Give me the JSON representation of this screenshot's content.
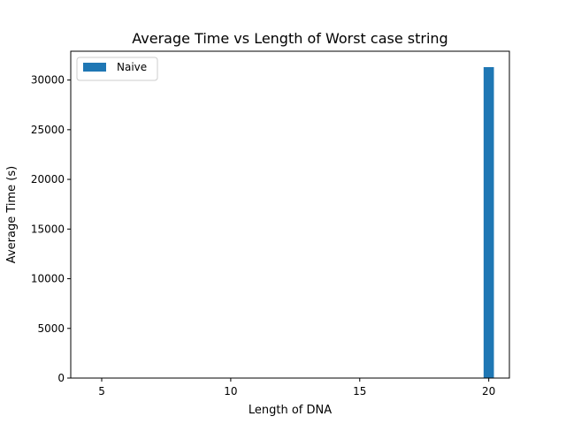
{
  "chart_data": {
    "type": "bar",
    "title": "Average Time vs Length of Worst case string",
    "xlabel": "Length of DNA",
    "ylabel": "Average Time (s)",
    "xlim": [
      3.8,
      20.8
    ],
    "ylim": [
      0,
      32900
    ],
    "xticks": [
      5,
      10,
      15,
      20
    ],
    "yticks": [
      0,
      5000,
      10000,
      15000,
      20000,
      25000,
      30000
    ],
    "bar_width": 0.4,
    "series": [
      {
        "name": "Naive",
        "x": [
          5,
          10,
          15,
          20
        ],
        "values": [
          0.0001,
          0.003,
          0.5,
          31300
        ],
        "color": "#1f77b4"
      }
    ],
    "legend": {
      "position": "top-left"
    },
    "grid": false
  }
}
